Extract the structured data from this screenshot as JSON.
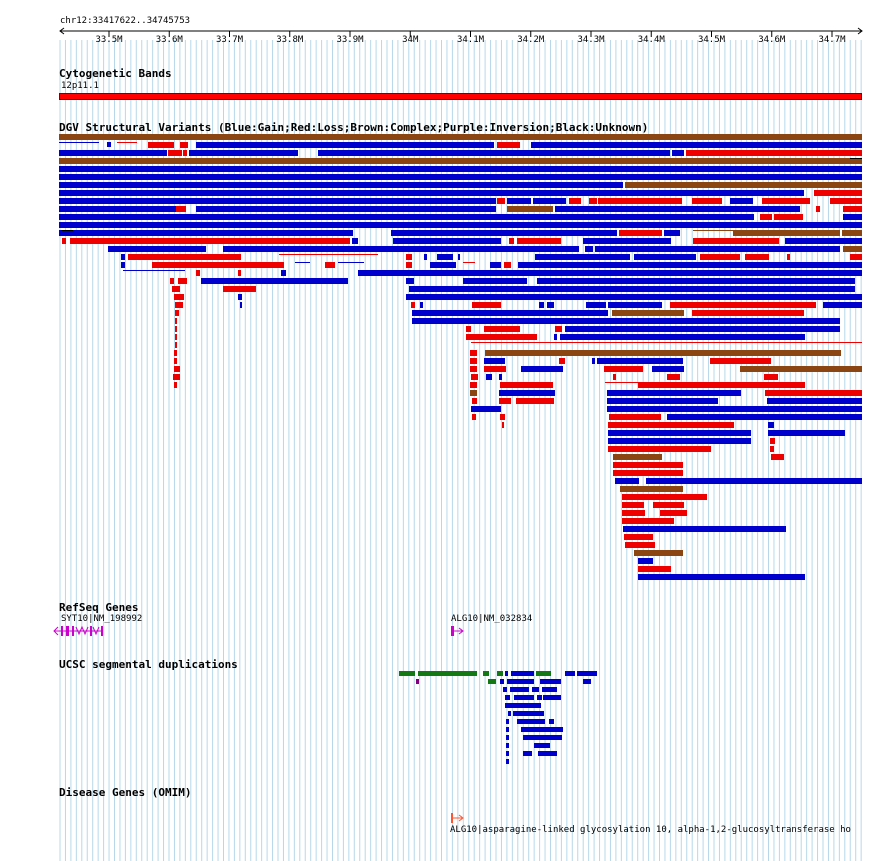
{
  "coordinate_label": "chr12:33417622..34745753",
  "ruler": {
    "ticks": [
      "33.5M",
      "33.6M",
      "33.7M",
      "33.8M",
      "33.9M",
      "34M",
      "34.1M",
      "34.2M",
      "34.3M",
      "34.4M",
      "34.5M",
      "34.6M",
      "34.7M"
    ]
  },
  "tracks": {
    "cytoband": {
      "title": "Cytogenetic Bands",
      "band_label": "12p11.1",
      "band_color": "#ff0000"
    },
    "dgv": {
      "title": "DGV Structural Variants (Blue:Gain;Red:Loss;Brown:Complex;Purple:Inversion;Black:Unknown)",
      "colors": {
        "gain": "#0000cc",
        "loss": "#ee0000",
        "complex": "#8b4513",
        "inversion": "#800080",
        "unknown": "#000000"
      }
    },
    "refseq": {
      "title": "RefSeq Genes",
      "genes": [
        "SYT10|NM_198992",
        "ALG10|NM_032834"
      ],
      "color": "#cc00cc"
    },
    "segdups": {
      "title": "UCSC segmental duplications",
      "colors": {
        "green": "#137a13",
        "blue": "#0000cc",
        "purple": "#800080"
      }
    },
    "omim": {
      "title": "Disease Genes (OMIM)",
      "label": "ALG10|asparagine-linked glycosylation 10, alpha-1,2-glucosyltransferase ho",
      "color": "#ff5533"
    }
  },
  "grid_color": "#b7d8ea"
}
